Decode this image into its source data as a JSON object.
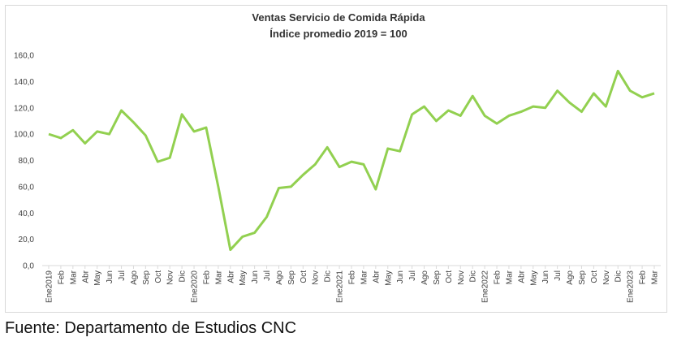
{
  "chart_data": {
    "type": "line",
    "title": "Ventas Servicio de Comida Rápida",
    "subtitle": "Índice promedio 2019 = 100",
    "categories": [
      "Ene2019",
      "Feb",
      "Mar",
      "Abr",
      "May",
      "Jun",
      "Jul",
      "Ago",
      "Sep",
      "Oct",
      "Nov",
      "Dic",
      "Ene2020",
      "Feb",
      "Mar",
      "Abr",
      "May",
      "Jun",
      "Jul",
      "Ago",
      "Sep",
      "Oct",
      "Nov",
      "Dic",
      "Ene2021",
      "Feb",
      "Mar",
      "Abr",
      "May",
      "Jun",
      "Jul",
      "Ago",
      "Sep",
      "Oct",
      "Nov",
      "Dic",
      "Ene2022",
      "Feb",
      "Mar",
      "Abr",
      "May",
      "Jun",
      "Jul",
      "Ago",
      "Sep",
      "Oct",
      "Nov",
      "Dic",
      "Ene2023",
      "Feb",
      "Mar"
    ],
    "series": [
      {
        "name": "Ventas",
        "color": "#92d050",
        "values": [
          100,
          97,
          103,
          93,
          102,
          100,
          118,
          109,
          99,
          79,
          82,
          115,
          102,
          105,
          60,
          12,
          22,
          25,
          37,
          59,
          60,
          69,
          77,
          90,
          75,
          79,
          77,
          58,
          89,
          87,
          115,
          121,
          110,
          118,
          114,
          129,
          114,
          108,
          114,
          117,
          121,
          120,
          133,
          124,
          117,
          131,
          121,
          148,
          133,
          128,
          131
        ]
      }
    ],
    "ylim": [
      0,
      160
    ],
    "yticks": [
      {
        "value": 0,
        "label": "0,0"
      },
      {
        "value": 20,
        "label": "20,0"
      },
      {
        "value": 40,
        "label": "40,0"
      },
      {
        "value": 60,
        "label": "60,0"
      },
      {
        "value": 80,
        "label": "80,0"
      },
      {
        "value": 100,
        "label": "100,0"
      },
      {
        "value": 120,
        "label": "120,0"
      },
      {
        "value": 140,
        "label": "140,0"
      },
      {
        "value": 160,
        "label": "160,0"
      }
    ],
    "grid": false,
    "source": "Fuente: Departamento de Estudios CNC"
  }
}
